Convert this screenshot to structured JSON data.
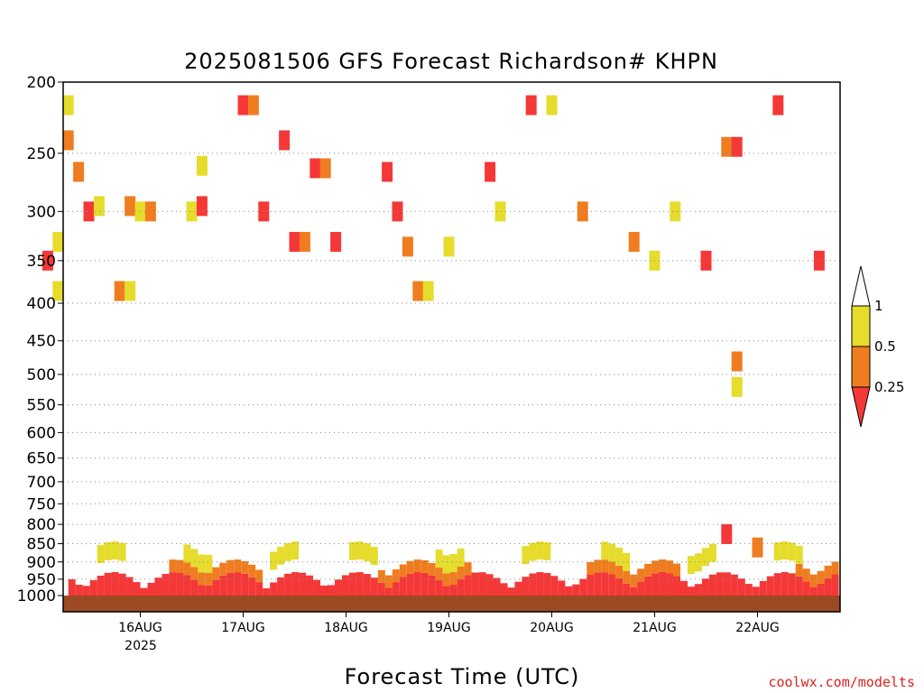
{
  "chart_data": {
    "type": "heatmap",
    "title": "2025081506 GFS Forecast Richardson# KHPN",
    "xlabel": "Forecast Time (UTC)",
    "ylabel": "",
    "y_scale": "log",
    "y_reversed": true,
    "y_ticks": [
      200,
      250,
      300,
      350,
      400,
      450,
      500,
      550,
      600,
      650,
      700,
      750,
      800,
      850,
      900,
      950,
      1000
    ],
    "ylim": [
      1000,
      200
    ],
    "x_tick_labels": [
      "16AUG",
      "17AUG",
      "18AUG",
      "19AUG",
      "20AUG",
      "21AUG",
      "22AUG"
    ],
    "x_year_label": "2025",
    "grid": true,
    "colorbar": {
      "labels": [
        "1",
        "0.5",
        "0.25"
      ],
      "colors": {
        "above_1": "#ffffff",
        "0.5_to_1": "#e6dc2c",
        "0.25_to_0.5": "#ef7d20",
        "below_0.25": "#f43838"
      }
    },
    "ground_color": "#9b4a22",
    "credit": "coolwx.com/modelts",
    "cells": [
      {
        "day": 15.3,
        "p": 215,
        "v": 0.6
      },
      {
        "day": 15.3,
        "p": 240,
        "v": 0.4
      },
      {
        "day": 15.4,
        "p": 265,
        "v": 0.4
      },
      {
        "day": 15.5,
        "p": 300,
        "v": 0.2
      },
      {
        "day": 15.6,
        "p": 295,
        "v": 0.6
      },
      {
        "day": 15.2,
        "p": 330,
        "v": 0.7
      },
      {
        "day": 15.1,
        "p": 350,
        "v": 0.2
      },
      {
        "day": 15.2,
        "p": 385,
        "v": 0.6
      },
      {
        "day": 15.9,
        "p": 295,
        "v": 0.4
      },
      {
        "day": 16.0,
        "p": 300,
        "v": 0.6
      },
      {
        "day": 16.1,
        "p": 300,
        "v": 0.4
      },
      {
        "day": 15.8,
        "p": 385,
        "v": 0.4
      },
      {
        "day": 15.9,
        "p": 385,
        "v": 0.6
      },
      {
        "day": 16.5,
        "p": 300,
        "v": 0.6
      },
      {
        "day": 16.6,
        "p": 260,
        "v": 0.6
      },
      {
        "day": 16.6,
        "p": 295,
        "v": 0.2
      },
      {
        "day": 17.0,
        "p": 215,
        "v": 0.2
      },
      {
        "day": 17.1,
        "p": 215,
        "v": 0.4
      },
      {
        "day": 17.4,
        "p": 240,
        "v": 0.2
      },
      {
        "day": 17.5,
        "p": 330,
        "v": 0.2
      },
      {
        "day": 17.6,
        "p": 330,
        "v": 0.4
      },
      {
        "day": 17.2,
        "p": 300,
        "v": 0.2
      },
      {
        "day": 17.7,
        "p": 262,
        "v": 0.2
      },
      {
        "day": 17.8,
        "p": 262,
        "v": 0.4
      },
      {
        "day": 17.9,
        "p": 330,
        "v": 0.2
      },
      {
        "day": 18.4,
        "p": 265,
        "v": 0.2
      },
      {
        "day": 18.5,
        "p": 300,
        "v": 0.2
      },
      {
        "day": 18.6,
        "p": 335,
        "v": 0.4
      },
      {
        "day": 18.7,
        "p": 385,
        "v": 0.4
      },
      {
        "day": 18.8,
        "p": 385,
        "v": 0.6
      },
      {
        "day": 19.0,
        "p": 335,
        "v": 0.6
      },
      {
        "day": 19.4,
        "p": 265,
        "v": 0.2
      },
      {
        "day": 19.5,
        "p": 300,
        "v": 0.6
      },
      {
        "day": 19.8,
        "p": 215,
        "v": 0.2
      },
      {
        "day": 20.0,
        "p": 215,
        "v": 0.6
      },
      {
        "day": 20.3,
        "p": 300,
        "v": 0.4
      },
      {
        "day": 20.8,
        "p": 330,
        "v": 0.4
      },
      {
        "day": 21.0,
        "p": 350,
        "v": 0.6
      },
      {
        "day": 21.2,
        "p": 300,
        "v": 0.6
      },
      {
        "day": 21.5,
        "p": 350,
        "v": 0.2
      },
      {
        "day": 21.7,
        "p": 245,
        "v": 0.4
      },
      {
        "day": 21.8,
        "p": 245,
        "v": 0.2
      },
      {
        "day": 22.2,
        "p": 215,
        "v": 0.2
      },
      {
        "day": 22.6,
        "p": 350,
        "v": 0.2
      },
      {
        "day": 21.8,
        "p": 480,
        "v": 0.4
      },
      {
        "day": 21.8,
        "p": 520,
        "v": 0.6
      },
      {
        "day": 21.7,
        "p": 825,
        "v": 0.2
      },
      {
        "day": 22.0,
        "p": 860,
        "v": 0.4
      }
    ]
  }
}
